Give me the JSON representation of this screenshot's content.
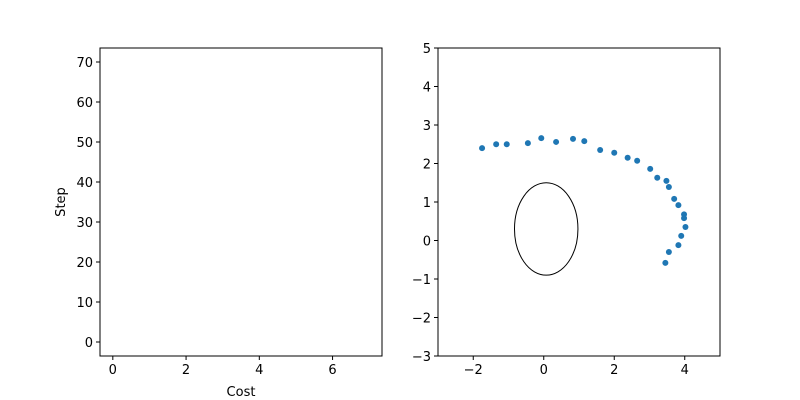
{
  "chart_data": [
    {
      "type": "scatter",
      "xlabel": "Cost",
      "ylabel": "Step",
      "xlim": [
        -0.35,
        7.35
      ],
      "ylim": [
        -3.5,
        73.5
      ],
      "xticks": [
        0,
        2,
        4,
        6
      ],
      "yticks": [
        0,
        10,
        20,
        30,
        40,
        50,
        60,
        70
      ],
      "series": [],
      "grid": false
    },
    {
      "type": "scatter",
      "xlim": [
        -3,
        5
      ],
      "ylim": [
        -3,
        5
      ],
      "xticks": [
        -2,
        0,
        2,
        4
      ],
      "yticks": [
        -3,
        -2,
        -1,
        0,
        1,
        2,
        3,
        4,
        5
      ],
      "grid": false,
      "series": [
        {
          "color": "#1f77b4",
          "points": [
            [
              -1.75,
              2.4
            ],
            [
              -1.35,
              2.5
            ],
            [
              -1.05,
              2.5
            ],
            [
              -0.45,
              2.53
            ],
            [
              -0.07,
              2.66
            ],
            [
              0.35,
              2.56
            ],
            [
              0.83,
              2.64
            ],
            [
              1.15,
              2.58
            ],
            [
              1.6,
              2.35
            ],
            [
              2.0,
              2.28
            ],
            [
              2.38,
              2.15
            ],
            [
              2.65,
              2.07
            ],
            [
              3.02,
              1.86
            ],
            [
              3.22,
              1.63
            ],
            [
              3.48,
              1.55
            ],
            [
              3.55,
              1.39
            ],
            [
              3.7,
              1.08
            ],
            [
              3.82,
              0.92
            ],
            [
              3.98,
              0.68
            ],
            [
              3.98,
              0.58
            ],
            [
              4.02,
              0.35
            ],
            [
              3.9,
              0.12
            ],
            [
              3.82,
              -0.12
            ],
            [
              3.55,
              -0.3
            ],
            [
              3.45,
              -0.58
            ]
          ]
        }
      ],
      "ellipse": {
        "center": [
          0.07,
          0.3
        ],
        "width": 1.8,
        "height": 2.4,
        "edgecolor": "#000000",
        "fill": "none"
      }
    }
  ]
}
